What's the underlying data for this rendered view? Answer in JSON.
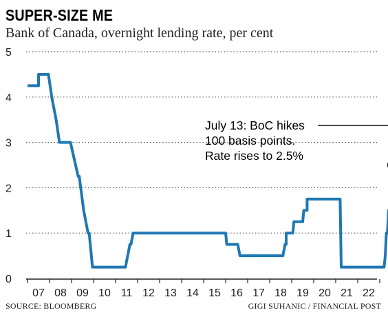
{
  "header": {
    "title": "SUPER-SIZE ME",
    "subtitle": "Bank of Canada, overnight lending rate, per cent"
  },
  "footer": {
    "source": "SOURCE: BLOOMBERG",
    "credit": "GIGI SUHANIC / FINANCIAL POST"
  },
  "colors": {
    "line": "#1f78b4",
    "grid": "#555555",
    "text": "#222222"
  },
  "chart_data": {
    "type": "line",
    "title": "SUPER-SIZE ME",
    "subtitle": "Bank of Canada, overnight lending rate, per cent",
    "xlabel": "",
    "ylabel": "",
    "ylim": [
      0,
      5
    ],
    "yticks": [
      "0",
      "1",
      "2",
      "3",
      "4",
      "5"
    ],
    "grid": "horizontal dotted",
    "xlim": [
      2006.0,
      2022.55
    ],
    "xticks": [
      "07",
      "08",
      "09",
      "10",
      "11",
      "12",
      "13",
      "14",
      "15",
      "16",
      "17",
      "18",
      "19",
      "20",
      "21",
      "22"
    ],
    "series": [
      {
        "x": [
          2006.0,
          2006.5,
          2006.5,
          2006.95,
          2007.1,
          2007.1,
          2007.3,
          2007.45,
          2007.45,
          2007.95,
          2007.95,
          2008.3,
          2008.3,
          2008.35,
          2008.55,
          2008.75,
          2008.8,
          2008.9,
          2008.95,
          2008.95,
          2009.2,
          2009.2,
          2009.3,
          2010.45,
          2010.65,
          2010.7,
          2010.7,
          2010.8,
          2010.8,
          2014.95,
          2015.0,
          2015.05,
          2015.55,
          2015.55,
          2015.65,
          2017.5,
          2017.6,
          2017.7,
          2017.75,
          2017.75,
          2017.85,
          2017.85,
          2018.05,
          2018.1,
          2018.1,
          2018.5,
          2018.55,
          2018.55,
          2018.7,
          2018.7,
          2018.85,
          2018.85,
          2020.2,
          2020.25,
          2020.25,
          2022.2,
          2022.25,
          2022.3,
          2022.35,
          2022.4,
          2022.45,
          2022.5,
          2022.55
        ],
        "y": [
          4.25,
          4.25,
          4.5,
          4.5,
          4.0,
          4.0,
          3.5,
          3.0,
          3.0,
          3.0,
          3.0,
          2.25,
          2.25,
          2.25,
          1.5,
          1.0,
          1.0,
          0.5,
          0.25,
          0.25,
          0.25,
          0.25,
          0.25,
          0.25,
          0.75,
          0.75,
          0.75,
          1.0,
          1.0,
          1.0,
          1.0,
          0.75,
          0.75,
          0.75,
          0.5,
          0.5,
          0.5,
          0.75,
          0.75,
          1.0,
          1.0,
          1.0,
          1.0,
          1.25,
          1.25,
          1.25,
          1.5,
          1.5,
          1.5,
          1.75,
          1.75,
          1.75,
          1.75,
          0.25,
          0.25,
          0.25,
          0.5,
          1.0,
          1.0,
          1.5,
          1.5,
          2.5,
          2.5
        ]
      }
    ],
    "annotation": {
      "lines": [
        "July 13: BoC hikes",
        "100 basis points.",
        "Rate rises to 2.5%"
      ],
      "x": 2022.55,
      "y": 2.5
    }
  }
}
